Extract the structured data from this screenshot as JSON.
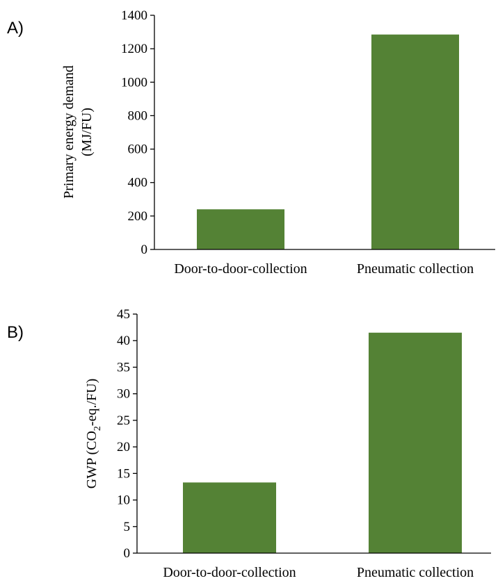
{
  "chart_data": [
    {
      "panel_label": "A)",
      "type": "bar",
      "categories": [
        "Door-to-door-collection",
        "Pneumatic collection"
      ],
      "values": [
        240,
        1285
      ],
      "ylabel_lines": [
        "Primary  energy demand",
        "(MJ/FU)"
      ],
      "ylim": [
        0,
        1400
      ],
      "yticks": [
        0,
        200,
        400,
        600,
        800,
        1000,
        1200,
        1400
      ],
      "bar_color": "#548235",
      "grid": false
    },
    {
      "panel_label": "B)",
      "type": "bar",
      "categories": [
        "Door-to-door-collection",
        "Pneumatic collection"
      ],
      "values": [
        13.3,
        41.5
      ],
      "ylabel_parts": [
        "GWP (CO",
        "2",
        "-eq./FU)"
      ],
      "ylim": [
        0,
        45
      ],
      "yticks": [
        0,
        5,
        10,
        15,
        20,
        25,
        30,
        35,
        40,
        45
      ],
      "bar_color": "#548235",
      "grid": false
    }
  ]
}
